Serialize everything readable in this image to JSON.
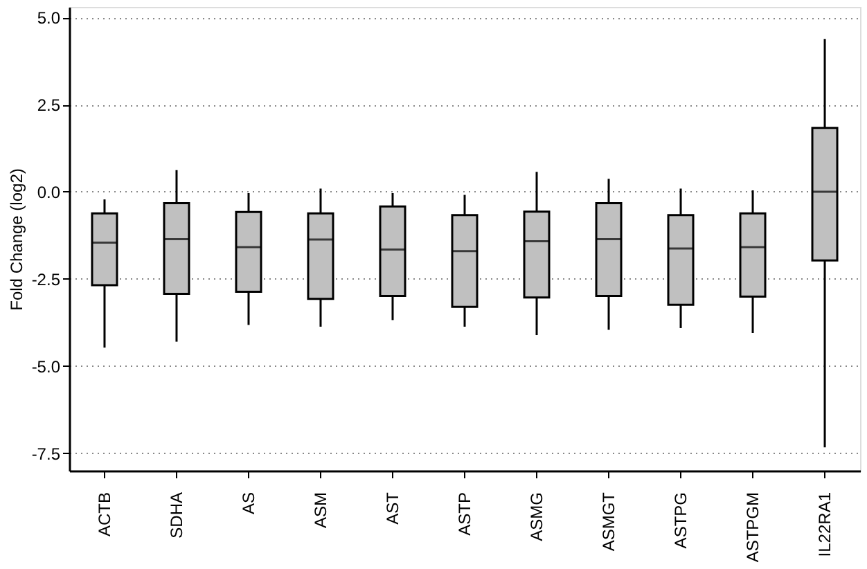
{
  "chart_data": {
    "type": "box",
    "ylabel": "Fold Change (log2)",
    "categories": [
      "ACTB",
      "SDHA",
      "AS",
      "ASM",
      "AST",
      "ASTP",
      "ASMG",
      "ASMGT",
      "ASTPG",
      "ASTPGM",
      "IL22RA1"
    ],
    "color": "#c0c0c0",
    "boxes": [
      {
        "low": -4.47,
        "q1": -2.68,
        "median": -1.46,
        "q3": -0.62,
        "high": -0.22
      },
      {
        "low": -4.3,
        "q1": -2.93,
        "median": -1.36,
        "q3": -0.33,
        "high": 0.62
      },
      {
        "low": -3.82,
        "q1": -2.87,
        "median": -1.59,
        "q3": -0.58,
        "high": -0.04
      },
      {
        "low": -3.87,
        "q1": -3.07,
        "median": -1.37,
        "q3": -0.62,
        "high": 0.09
      },
      {
        "low": -3.68,
        "q1": -2.99,
        "median": -1.66,
        "q3": -0.42,
        "high": -0.04
      },
      {
        "low": -3.87,
        "q1": -3.3,
        "median": -1.7,
        "q3": -0.67,
        "high": -0.09
      },
      {
        "low": -4.11,
        "q1": -3.03,
        "median": -1.42,
        "q3": -0.57,
        "high": 0.57
      },
      {
        "low": -3.96,
        "q1": -2.99,
        "median": -1.36,
        "q3": -0.33,
        "high": 0.37
      },
      {
        "low": -3.91,
        "q1": -3.24,
        "median": -1.63,
        "q3": -0.67,
        "high": 0.09
      },
      {
        "low": -4.05,
        "q1": -3.01,
        "median": -1.59,
        "q3": -0.62,
        "high": 0.04
      },
      {
        "low": -7.33,
        "q1": -1.97,
        "median": 0,
        "q3": 1.83,
        "high": 4.38
      }
    ],
    "ylim": [
      -8,
      5.3
    ],
    "yticks": [
      {
        "value": -7.5,
        "label": "-7.5"
      },
      {
        "value": -5,
        "label": "-5.0"
      },
      {
        "value": -2.5,
        "label": "-2.5"
      },
      {
        "value": 0,
        "label": "0.0"
      },
      {
        "value": 2.5,
        "label": "2.5"
      },
      {
        "value": 5,
        "label": "5.0"
      }
    ],
    "grid": "y"
  }
}
